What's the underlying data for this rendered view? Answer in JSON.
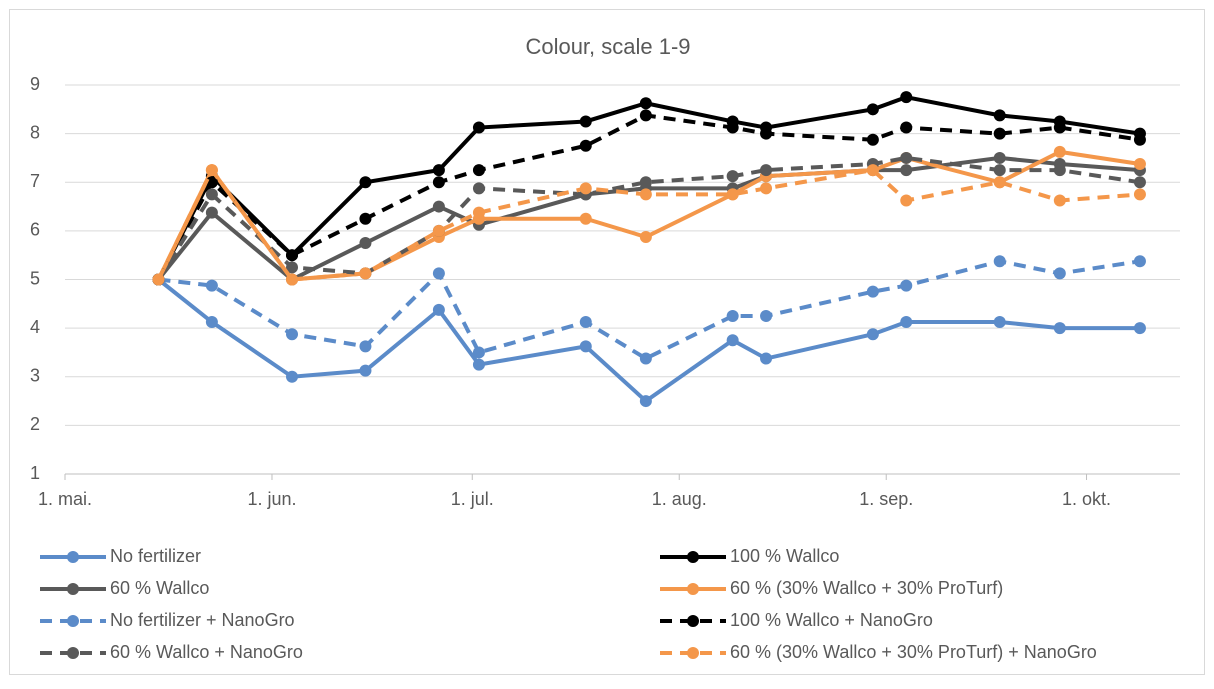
{
  "chart_data": {
    "type": "line",
    "title": "Colour, scale 1-9",
    "x": [
      "05-15",
      "05-23",
      "06-04",
      "06-15",
      "06-26",
      "07-02",
      "07-18",
      "07-27",
      "08-09",
      "08-14",
      "08-30",
      "09-04",
      "09-18",
      "09-27",
      "10-09"
    ],
    "xlim": [
      "05-01",
      "10-15"
    ],
    "xticks": [
      {
        "value": "05-01",
        "label": "1. mai."
      },
      {
        "value": "06-01",
        "label": "1. jun."
      },
      {
        "value": "07-01",
        "label": "1. jul."
      },
      {
        "value": "08-01",
        "label": "1. aug."
      },
      {
        "value": "09-01",
        "label": "1. sep."
      },
      {
        "value": "10-01",
        "label": "1. okt."
      }
    ],
    "ylim": [
      1,
      9
    ],
    "yticks": [
      1,
      2,
      3,
      4,
      5,
      6,
      7,
      8,
      9
    ],
    "grid": true,
    "series": [
      {
        "name": "No fertilizer",
        "color": "#5b8bc9",
        "dash": false,
        "values": [
          5,
          4.125,
          3,
          3.125,
          4.375,
          3.25,
          3.625,
          2.5,
          3.75,
          3.375,
          3.875,
          4.125,
          4.125,
          4,
          4
        ]
      },
      {
        "name": "100 % Wallco",
        "color": "#000000",
        "dash": false,
        "values": [
          5,
          7.125,
          5.5,
          7,
          7.25,
          8.125,
          8.25,
          8.625,
          8.25,
          8.125,
          8.5,
          8.75,
          8.375,
          8.25,
          8
        ]
      },
      {
        "name": "60 % Wallco",
        "color": "#595959",
        "dash": false,
        "values": [
          5,
          6.375,
          5,
          5.75,
          6.5,
          6.125,
          6.75,
          6.875,
          6.875,
          7.125,
          7.25,
          7.25,
          7.5,
          7.375,
          7.25
        ]
      },
      {
        "name": "60 % (30% Wallco + 30% ProTurf)",
        "color": "#f4974a",
        "dash": false,
        "values": [
          5,
          7.25,
          5,
          5.125,
          5.875,
          6.25,
          6.25,
          5.875,
          6.75,
          7.125,
          7.25,
          7.5,
          7,
          7.625,
          7.375
        ]
      },
      {
        "name": "No fertilizer  + NanoGro",
        "color": "#5b8bc9",
        "dash": true,
        "values": [
          5,
          4.875,
          3.875,
          3.625,
          5.125,
          3.5,
          4.125,
          3.375,
          4.25,
          4.25,
          4.75,
          4.875,
          5.375,
          5.125,
          5.375
        ]
      },
      {
        "name": "100 % Wallco  + NanoGro",
        "color": "#000000",
        "dash": true,
        "values": [
          5,
          7,
          5.5,
          6.25,
          7,
          7.25,
          7.75,
          8.375,
          8.125,
          8,
          7.875,
          8.125,
          8,
          8.125,
          7.875
        ]
      },
      {
        "name": "60 % Wallco   + NanoGro",
        "color": "#595959",
        "dash": true,
        "values": [
          5,
          6.75,
          5.25,
          5.125,
          6,
          6.875,
          6.75,
          7,
          7.125,
          7.25,
          7.375,
          7.5,
          7.25,
          7.25,
          7
        ]
      },
      {
        "name": "60 % (30% Wallco + 30% ProTurf) + NanoGro",
        "color": "#f4974a",
        "dash": true,
        "values": [
          5,
          7.25,
          5,
          5.125,
          6,
          6.375,
          6.875,
          6.75,
          6.75,
          6.875,
          7.25,
          6.625,
          7,
          6.625,
          6.75
        ]
      }
    ]
  }
}
